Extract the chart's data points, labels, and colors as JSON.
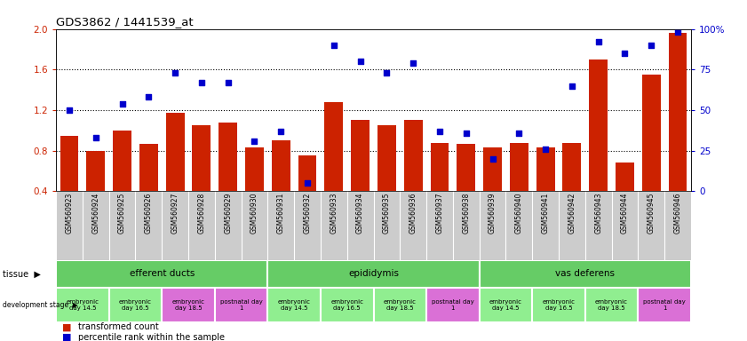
{
  "title": "GDS3862 / 1441539_at",
  "samples": [
    "GSM560923",
    "GSM560924",
    "GSM560925",
    "GSM560926",
    "GSM560927",
    "GSM560928",
    "GSM560929",
    "GSM560930",
    "GSM560931",
    "GSM560932",
    "GSM560933",
    "GSM560934",
    "GSM560935",
    "GSM560936",
    "GSM560937",
    "GSM560938",
    "GSM560939",
    "GSM560940",
    "GSM560941",
    "GSM560942",
    "GSM560943",
    "GSM560944",
    "GSM560945",
    "GSM560946"
  ],
  "transformed_count": [
    0.95,
    0.8,
    1.0,
    0.87,
    1.17,
    1.05,
    1.08,
    0.83,
    0.9,
    0.75,
    1.28,
    1.1,
    1.05,
    1.1,
    0.88,
    0.87,
    0.83,
    0.88,
    0.83,
    0.88,
    1.7,
    0.68,
    1.55,
    1.96
  ],
  "percentile_rank": [
    50,
    33,
    54,
    58,
    73,
    67,
    67,
    31,
    37,
    5,
    90,
    80,
    73,
    79,
    37,
    36,
    20,
    36,
    26,
    65,
    92,
    85,
    90,
    98
  ],
  "ylim_left": [
    0.4,
    2.0
  ],
  "ylim_right": [
    0,
    100
  ],
  "yticks_left": [
    0.4,
    0.8,
    1.2,
    1.6,
    2.0
  ],
  "yticks_right": [
    0,
    25,
    50,
    75,
    100
  ],
  "ytick_labels_right": [
    "0",
    "25",
    "50",
    "75",
    "100%"
  ],
  "bar_color": "#CC2200",
  "dot_color": "#0000CC",
  "hgrid_values": [
    0.8,
    1.2,
    1.6
  ],
  "tissue_groups": [
    {
      "label": "efferent ducts",
      "start": 0,
      "end": 8,
      "color": "#66CC66"
    },
    {
      "label": "epididymis",
      "start": 8,
      "end": 16,
      "color": "#66CC66"
    },
    {
      "label": "vas deferens",
      "start": 16,
      "end": 24,
      "color": "#66CC66"
    }
  ],
  "dev_stage_groups": [
    {
      "label": "embryonic\nday 14.5",
      "start": 0,
      "end": 2,
      "color": "#90EE90"
    },
    {
      "label": "embryonic\nday 16.5",
      "start": 2,
      "end": 4,
      "color": "#90EE90"
    },
    {
      "label": "embryonic\nday 18.5",
      "start": 4,
      "end": 6,
      "color": "#DA70D6"
    },
    {
      "label": "postnatal day\n1",
      "start": 6,
      "end": 8,
      "color": "#DA70D6"
    },
    {
      "label": "embryonic\nday 14.5",
      "start": 8,
      "end": 10,
      "color": "#90EE90"
    },
    {
      "label": "embryonic\nday 16.5",
      "start": 10,
      "end": 12,
      "color": "#90EE90"
    },
    {
      "label": "embryonic\nday 18.5",
      "start": 12,
      "end": 14,
      "color": "#90EE90"
    },
    {
      "label": "postnatal day\n1",
      "start": 14,
      "end": 16,
      "color": "#DA70D6"
    },
    {
      "label": "embryonic\nday 14.5",
      "start": 16,
      "end": 18,
      "color": "#90EE90"
    },
    {
      "label": "embryonic\nday 16.5",
      "start": 18,
      "end": 20,
      "color": "#90EE90"
    },
    {
      "label": "embryonic\nday 18.5",
      "start": 20,
      "end": 22,
      "color": "#90EE90"
    },
    {
      "label": "postnatal day\n1",
      "start": 22,
      "end": 24,
      "color": "#DA70D6"
    }
  ],
  "xlabel_bg_color": "#CCCCCC",
  "legend_items": [
    {
      "label": "transformed count",
      "color": "#CC2200"
    },
    {
      "label": "percentile rank within the sample",
      "color": "#0000CC"
    }
  ]
}
